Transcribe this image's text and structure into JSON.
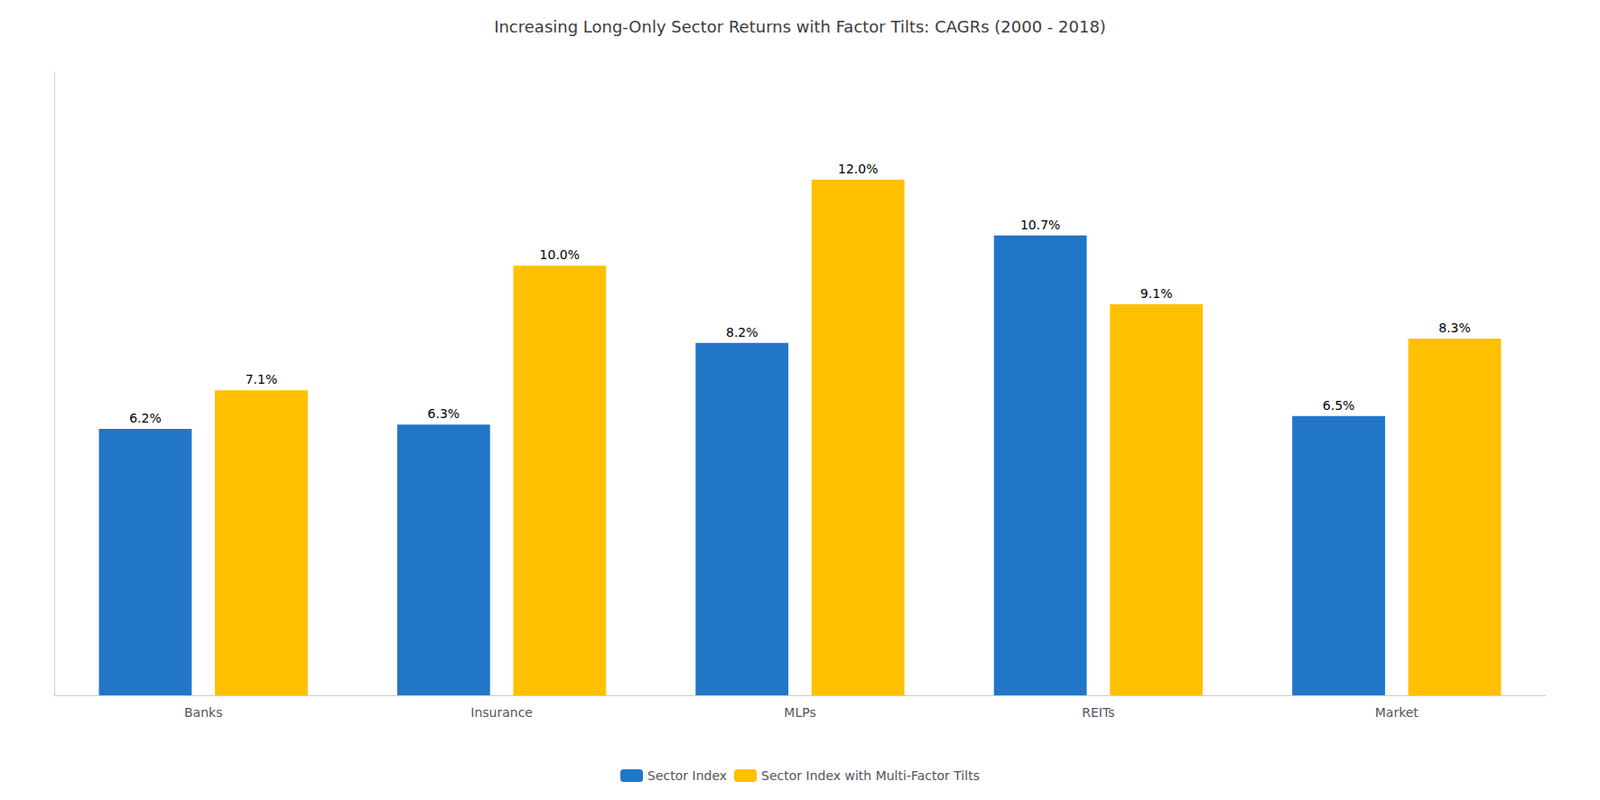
{
  "chart_data": {
    "type": "bar",
    "title": "Increasing Long-Only Sector Returns with Factor Tilts: CAGRs (2000 - 2018)",
    "categories": [
      "Banks",
      "Insurance",
      "MLPs",
      "REITs",
      "Market"
    ],
    "series": [
      {
        "name": "Sector Index",
        "color": "#2176C8",
        "values": [
          6.2,
          6.3,
          8.2,
          10.7,
          6.5
        ],
        "value_labels": [
          "6.2%",
          "6.3%",
          "8.2%",
          "10.7%",
          "6.5%"
        ]
      },
      {
        "name": "Sector Index with Multi-Factor Tilts",
        "color": "#FFC000",
        "values": [
          7.1,
          10.0,
          12.0,
          9.1,
          8.3
        ],
        "value_labels": [
          "7.1%",
          "10.0%",
          "12.0%",
          "9.1%",
          "8.3%"
        ]
      }
    ],
    "ylim": [
      0,
      14.5
    ],
    "data_labels": true,
    "tick_labels": "x",
    "grid": false,
    "legend": "bottom"
  }
}
